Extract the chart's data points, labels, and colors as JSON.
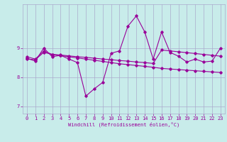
{
  "xlabel": "Windchill (Refroidissement éolien,°C)",
  "bg_color": "#c8ecea",
  "grid_color": "#aaaacc",
  "line_color": "#990099",
  "xlim": [
    -0.5,
    23.5
  ],
  "ylim": [
    6.75,
    10.5
  ],
  "yticks": [
    7,
    8,
    9
  ],
  "xticks": [
    0,
    1,
    2,
    3,
    4,
    5,
    6,
    7,
    8,
    9,
    10,
    11,
    12,
    13,
    14,
    15,
    16,
    17,
    18,
    19,
    20,
    21,
    22,
    23
  ],
  "series1_x": [
    0,
    1,
    2,
    3,
    4,
    5,
    6,
    7,
    8,
    9,
    10,
    11,
    12,
    13,
    14,
    15,
    16,
    17,
    18,
    19,
    20,
    21,
    22,
    23
  ],
  "series1_y": [
    8.65,
    8.55,
    9.0,
    8.7,
    8.75,
    8.62,
    8.5,
    7.35,
    7.6,
    7.82,
    8.82,
    8.9,
    9.75,
    10.1,
    9.55,
    8.62,
    9.55,
    8.85,
    8.72,
    8.52,
    8.62,
    8.52,
    8.55,
    9.0
  ],
  "series2_x": [
    0,
    1,
    2,
    3,
    4,
    5,
    6,
    7,
    8,
    9,
    10,
    11,
    12,
    13,
    14,
    15,
    16,
    17,
    18,
    19,
    20,
    21,
    22,
    23
  ],
  "series2_y": [
    8.62,
    8.6,
    8.85,
    8.78,
    8.74,
    8.7,
    8.66,
    8.62,
    8.58,
    8.54,
    8.5,
    8.46,
    8.43,
    8.4,
    8.37,
    8.34,
    8.3,
    8.28,
    8.26,
    8.24,
    8.22,
    8.2,
    8.18,
    8.16
  ],
  "series3_x": [
    0,
    1,
    2,
    3,
    4,
    5,
    6,
    7,
    8,
    9,
    10,
    11,
    12,
    13,
    14,
    15,
    16,
    17,
    18,
    19,
    20,
    21,
    22,
    23
  ],
  "series3_y": [
    8.7,
    8.62,
    8.9,
    8.78,
    8.76,
    8.73,
    8.7,
    8.68,
    8.65,
    8.62,
    8.6,
    8.57,
    8.55,
    8.52,
    8.5,
    8.47,
    8.93,
    8.9,
    8.87,
    8.84,
    8.81,
    8.78,
    8.75,
    8.72
  ]
}
